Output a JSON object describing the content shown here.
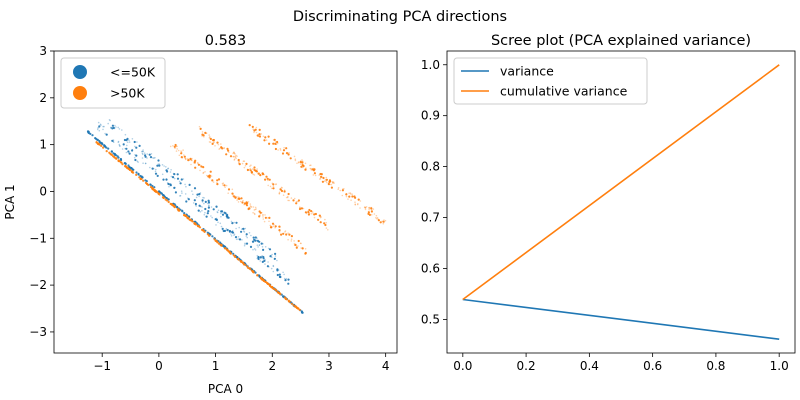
{
  "figure": {
    "suptitle": "Discriminating PCA directions"
  },
  "chart_data": [
    {
      "type": "scatter",
      "title": "0.583",
      "xlabel": "PCA 0",
      "ylabel": "PCA 1",
      "xlim": [
        -1.85,
        4.2
      ],
      "ylim": [
        -3.45,
        3.0
      ],
      "xticks": [
        -1,
        0,
        1,
        2,
        3,
        4
      ],
      "yticks": [
        -3,
        -2,
        -1,
        0,
        1,
        2,
        3
      ],
      "grid": false,
      "legend": {
        "position": "top-left",
        "entries": [
          "<=50K",
          ">50K"
        ]
      },
      "series": [
        {
          "name": "<=50K",
          "color": "#1f77b4",
          "description_bands": [
            {
              "x_range": [
                -1.25,
                2.55
              ],
              "intercept": 0.0,
              "slope": -1.02
            },
            {
              "x_range": [
                -1.1,
                2.3
              ],
              "intercept": 0.35,
              "slope": -0.98
            },
            {
              "x_range": [
                -0.9,
                2.1
              ],
              "intercept": 0.6,
              "slope": -0.97
            }
          ]
        },
        {
          "name": ">50K",
          "color": "#ff7f0e",
          "description_bands": [
            {
              "x_range": [
                -1.1,
                2.5
              ],
              "intercept": -0.05,
              "slope": -1.0
            },
            {
              "x_range": [
                0.2,
                2.6
              ],
              "intercept": 1.2,
              "slope": -0.95
            },
            {
              "x_range": [
                0.7,
                3.0
              ],
              "intercept": 1.95,
              "slope": -0.9
            },
            {
              "x_range": [
                1.6,
                4.0
              ],
              "intercept": 2.75,
              "slope": -0.85
            }
          ]
        }
      ]
    },
    {
      "type": "line",
      "title": "Scree plot (PCA explained variance)",
      "xlabel": "",
      "ylabel": "",
      "xlim": [
        -0.05,
        1.05
      ],
      "ylim": [
        0.434,
        1.027
      ],
      "xticks": [
        0.0,
        0.2,
        0.4,
        0.6,
        0.8,
        1.0
      ],
      "yticks": [
        0.5,
        0.6,
        0.7,
        0.8,
        0.9,
        1.0
      ],
      "grid": false,
      "legend": {
        "position": "top-left"
      },
      "series": [
        {
          "name": "variance",
          "color": "#1f77b4",
          "x": [
            0,
            1
          ],
          "y": [
            0.539,
            0.461
          ]
        },
        {
          "name": "cumulative variance",
          "color": "#ff7f0e",
          "x": [
            0,
            1
          ],
          "y": [
            0.539,
            1.0
          ]
        }
      ]
    }
  ]
}
